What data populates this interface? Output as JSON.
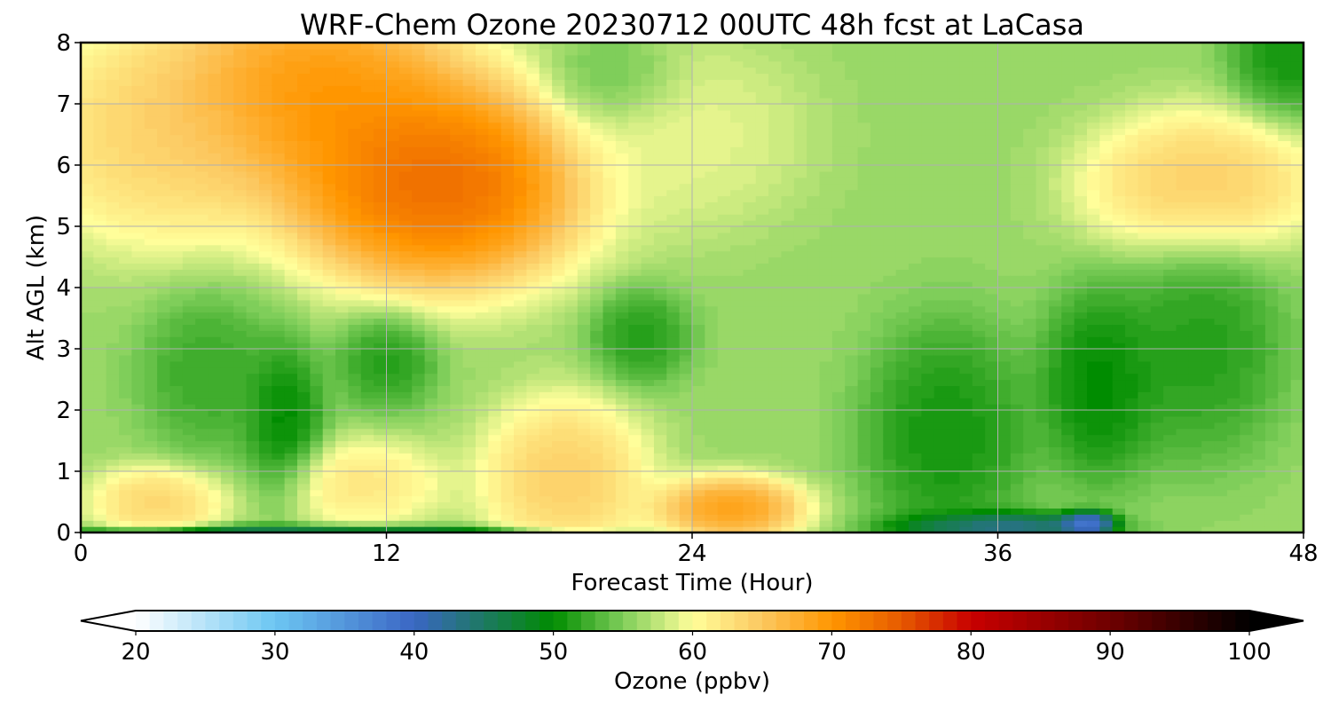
{
  "chart_data": {
    "type": "heatmap",
    "title": "WRF-Chem Ozone  20230712 00UTC 48h fcst at LaCasa",
    "xlabel": "Forecast Time (Hour)",
    "ylabel": "Alt AGL (km)",
    "xlim": [
      0,
      48
    ],
    "ylim": [
      0,
      8
    ],
    "xticks": [
      "0",
      "12",
      "24",
      "36",
      "48"
    ],
    "yticks": [
      "0",
      "1",
      "2",
      "3",
      "4",
      "5",
      "6",
      "7",
      "8"
    ],
    "grid": true,
    "colorbar": {
      "label": "Ozone  (ppbv)",
      "range": [
        20,
        100
      ],
      "ticks": [
        "20",
        "30",
        "40",
        "50",
        "60",
        "70",
        "80",
        "90",
        "100"
      ],
      "extend": "both",
      "stops": [
        [
          20,
          "#ffffff"
        ],
        [
          30,
          "#6cc6f2"
        ],
        [
          40,
          "#3a66c4"
        ],
        [
          50,
          "#008c00"
        ],
        [
          55,
          "#7fce5a"
        ],
        [
          60,
          "#fffe9a"
        ],
        [
          65,
          "#fcc860"
        ],
        [
          70,
          "#ff9600"
        ],
        [
          75,
          "#e65a00"
        ],
        [
          80,
          "#c80000"
        ],
        [
          90,
          "#6e0000"
        ],
        [
          100,
          "#000000"
        ]
      ]
    },
    "field_features": [
      {
        "t": 14,
        "z": 5.7,
        "value": 79,
        "spread_t": 4.5,
        "spread_z": 1.3
      },
      {
        "t": 9,
        "z": 7.2,
        "value": 74,
        "spread_t": 4.5,
        "spread_z": 1.3
      },
      {
        "t": 3,
        "z": 6.5,
        "value": 66,
        "spread_t": 4,
        "spread_z": 1.4
      },
      {
        "t": 24,
        "z": 6.5,
        "value": 60,
        "spread_t": 3.5,
        "spread_z": 1.2
      },
      {
        "t": 21,
        "z": 7.4,
        "value": 53,
        "spread_t": 2,
        "spread_z": 0.6
      },
      {
        "t": 44,
        "z": 5.7,
        "value": 67,
        "spread_t": 3.5,
        "spread_z": 0.9
      },
      {
        "t": 47.5,
        "z": 7.8,
        "value": 49,
        "spread_t": 1.8,
        "spread_z": 0.8
      },
      {
        "t": 3,
        "z": 0.5,
        "value": 66,
        "spread_t": 2,
        "spread_z": 0.45
      },
      {
        "t": 11,
        "z": 0.8,
        "value": 64,
        "spread_t": 2.5,
        "spread_z": 0.55
      },
      {
        "t": 19,
        "z": 0.9,
        "value": 67,
        "spread_t": 2.5,
        "spread_z": 1.0
      },
      {
        "t": 25.5,
        "z": 0.4,
        "value": 73,
        "spread_t": 2.2,
        "spread_z": 0.4
      },
      {
        "t": 8,
        "z": 1.8,
        "value": 48,
        "spread_t": 1.2,
        "spread_z": 1.0
      },
      {
        "t": 12,
        "z": 2.8,
        "value": 50,
        "spread_t": 1.5,
        "spread_z": 0.6
      },
      {
        "t": 5,
        "z": 2.6,
        "value": 51,
        "spread_t": 2,
        "spread_z": 1.0
      },
      {
        "t": 22,
        "z": 3.2,
        "value": 50,
        "spread_t": 1.5,
        "spread_z": 0.6
      },
      {
        "t": 34,
        "z": 1.6,
        "value": 49,
        "spread_t": 2.5,
        "spread_z": 1.4
      },
      {
        "t": 40,
        "z": 2.4,
        "value": 48,
        "spread_t": 1.8,
        "spread_z": 1.2
      },
      {
        "t": 44,
        "z": 3.0,
        "value": 50,
        "spread_t": 2.5,
        "spread_z": 1.4
      },
      {
        "t": 9,
        "z": 0.03,
        "value": 42,
        "spread_t": 7,
        "spread_z": 0.08
      },
      {
        "t": 36,
        "z": 0.1,
        "value": 38,
        "spread_t": 3,
        "spread_z": 0.18
      },
      {
        "t": 39.5,
        "z": 0.15,
        "value": 32,
        "spread_t": 0.8,
        "spread_z": 0.15
      }
    ]
  }
}
